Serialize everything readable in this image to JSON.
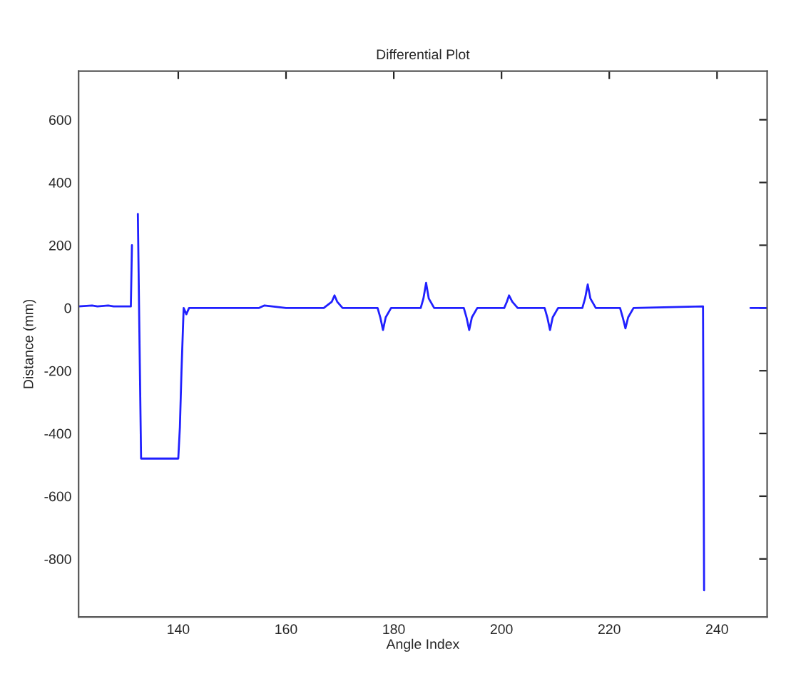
{
  "chart_data": {
    "type": "line",
    "title": "Differential Plot",
    "xlabel": "Angle Index",
    "ylabel": "Distance (mm)",
    "x": [
      121.5,
      124,
      125,
      127,
      128,
      131.2,
      131.4,
      131.6,
      132.3,
      132.5,
      132.8,
      133.1,
      140,
      140.3,
      140.6,
      141,
      141.5,
      142,
      150,
      155,
      156,
      160,
      167,
      168.5,
      169,
      169.5,
      170.5,
      177,
      177.5,
      178,
      178.5,
      179.5,
      185,
      185.5,
      186,
      186.5,
      187.5,
      193,
      193.5,
      194,
      194.5,
      195.5,
      200.5,
      201,
      201.4,
      202,
      203,
      208,
      208.5,
      209,
      209.5,
      210.5,
      215,
      215.5,
      216,
      216.5,
      217.5,
      222,
      222.5,
      223,
      223.5,
      224.5,
      237.4,
      237.6,
      238,
      246,
      246.2,
      249.3
    ],
    "series": [
      {
        "color": "#2020ff",
        "values": [
          5,
          8,
          5,
          8,
          5,
          5,
          200,
          null,
          null,
          300,
          -100,
          -480,
          -480,
          -380,
          -200,
          0,
          -20,
          0,
          0,
          0,
          8,
          0,
          0,
          20,
          40,
          20,
          0,
          0,
          -30,
          -70,
          -30,
          0,
          0,
          30,
          80,
          30,
          0,
          0,
          -30,
          -70,
          -30,
          0,
          0,
          20,
          40,
          20,
          0,
          0,
          -30,
          -70,
          -30,
          0,
          0,
          30,
          75,
          30,
          0,
          0,
          -30,
          -65,
          -30,
          0,
          5,
          -900,
          null,
          null,
          0,
          0
        ]
      }
    ],
    "xlim": [
      121.5,
      249.3
    ],
    "ylim": [
      -985,
      755
    ],
    "xticks": [
      140,
      160,
      180,
      200,
      220,
      240
    ],
    "yticks": [
      {
        "value": 600,
        "label": "600"
      },
      {
        "value": 400,
        "label": "400"
      },
      {
        "value": 200,
        "label": "200"
      },
      {
        "value": 0,
        "label": "0"
      },
      {
        "value": -200,
        "label": "-200"
      },
      {
        "value": -400,
        "label": "-400"
      },
      {
        "value": -600,
        "label": "-600"
      },
      {
        "value": -800,
        "label": "-800"
      }
    ],
    "grid": false,
    "legend": false,
    "marker": "none",
    "line_style": "solid"
  }
}
